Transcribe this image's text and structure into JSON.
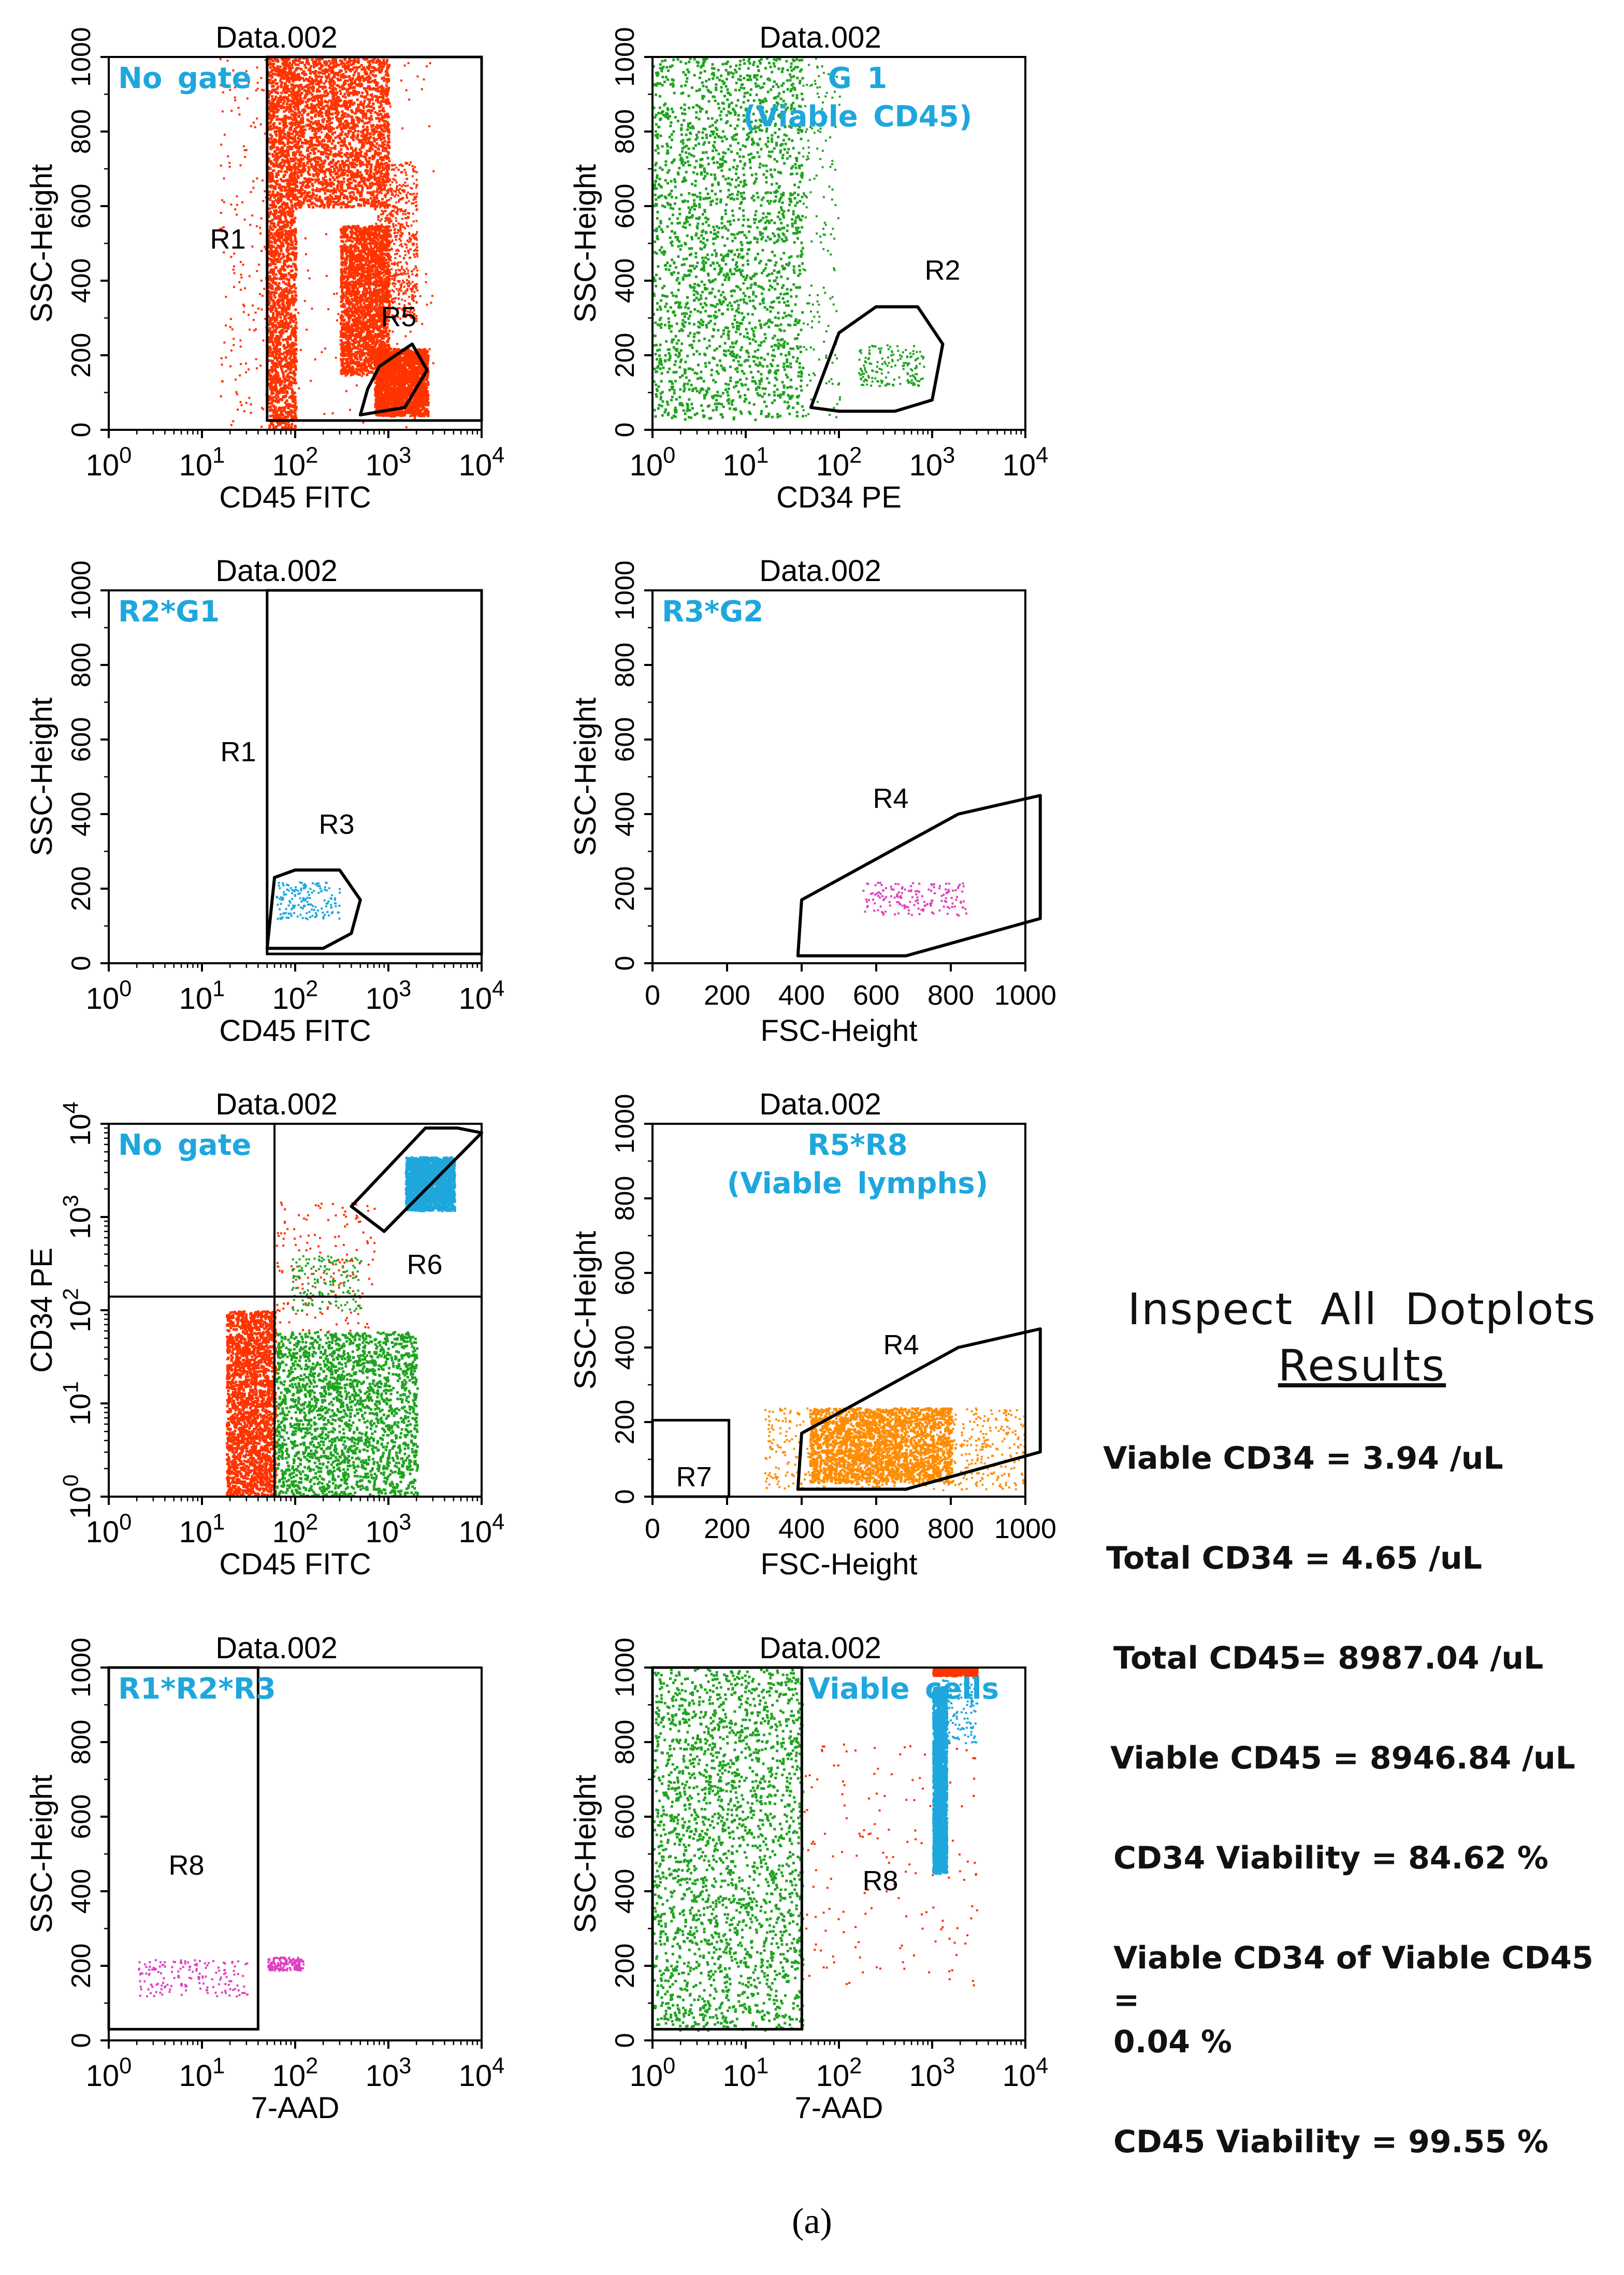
{
  "chart_data": [
    {
      "type": "scatter",
      "title": "Data.002",
      "gate_label": [
        "No gate"
      ],
      "xlabel": "CD45 FITC",
      "ylabel": "SSC-Height",
      "xscale": "log",
      "xlim": [
        1,
        10000
      ],
      "yscale": "linear",
      "ylim": [
        0,
        1000
      ],
      "x_ticks": [
        1,
        10,
        100,
        1000,
        10000
      ],
      "y_ticks": [
        0,
        200,
        400,
        600,
        800,
        1000
      ],
      "regions": [
        {
          "name": "R1",
          "shape": "rectangle",
          "x": [
            50,
            10000
          ],
          "y": [
            25,
            1000
          ]
        },
        {
          "name": "R5",
          "shape": "polygon",
          "points": [
            [
              500,
              40
            ],
            [
              1500,
              60
            ],
            [
              2600,
              160
            ],
            [
              1800,
              230
            ],
            [
              800,
              170
            ],
            [
              600,
              110
            ]
          ]
        }
      ],
      "populations": [
        {
          "color": "#ff3300",
          "x_range": [
            50,
            100
          ],
          "y_range": [
            0,
            1000
          ],
          "density": "high"
        },
        {
          "color": "#ff3300",
          "x_range": [
            15,
            50
          ],
          "y_range": [
            0,
            1000
          ],
          "density": "low"
        },
        {
          "color": "#ff3300",
          "x_range": [
            100,
            1000
          ],
          "y_range": [
            600,
            1000
          ],
          "density": "high"
        },
        {
          "color": "#ff3300",
          "x_range": [
            300,
            1000
          ],
          "y_range": [
            150,
            550
          ],
          "density": "high"
        },
        {
          "color": "#ff3300",
          "x_range": [
            700,
            2600
          ],
          "y_range": [
            40,
            220
          ],
          "density": "high"
        },
        {
          "color": "#ff3300",
          "x_range": [
            700,
            2000
          ],
          "y_range": [
            300,
            720
          ],
          "density": "medium"
        },
        {
          "color": "#ff3300",
          "x_range": [
            100,
            3000
          ],
          "y_range": [
            0,
            1000
          ],
          "density": "low"
        }
      ]
    },
    {
      "type": "scatter",
      "title": "Data.002",
      "gate_label": [
        "G 1",
        "(Viable  CD45)"
      ],
      "xlabel": "CD34 PE",
      "ylabel": "SSC-Height",
      "xscale": "log",
      "xlim": [
        1,
        10000
      ],
      "yscale": "linear",
      "ylim": [
        0,
        1000
      ],
      "x_ticks": [
        1,
        10,
        100,
        1000,
        10000
      ],
      "y_ticks": [
        0,
        200,
        400,
        600,
        800,
        1000
      ],
      "regions": [
        {
          "name": "R2",
          "shape": "polygon",
          "points": [
            [
              50,
              60
            ],
            [
              100,
              260
            ],
            [
              250,
              330
            ],
            [
              700,
              330
            ],
            [
              1300,
              230
            ],
            [
              1000,
              80
            ],
            [
              400,
              50
            ],
            [
              100,
              50
            ]
          ]
        }
      ],
      "populations": [
        {
          "color": "#1fa31f",
          "x_range": [
            1,
            40
          ],
          "y_range": [
            30,
            1000
          ],
          "density": "high"
        },
        {
          "color": "#1fa31f",
          "x_range": [
            40,
            100
          ],
          "y_range": [
            30,
            1000
          ],
          "density": "low"
        },
        {
          "color": "#1fa31f",
          "x_range": [
            160,
            800
          ],
          "y_range": [
            120,
            230
          ],
          "density": "low"
        }
      ]
    },
    {
      "type": "scatter",
      "title": "Data.002",
      "gate_label": [
        "R2*G1"
      ],
      "xlabel": "CD45 FITC",
      "ylabel": "SSC-Height",
      "xscale": "log",
      "xlim": [
        1,
        10000
      ],
      "yscale": "linear",
      "ylim": [
        0,
        1000
      ],
      "x_ticks": [
        1,
        10,
        100,
        1000,
        10000
      ],
      "y_ticks": [
        0,
        200,
        400,
        600,
        800,
        1000
      ],
      "regions": [
        {
          "name": "R1",
          "shape": "rectangle",
          "x": [
            50,
            10000
          ],
          "y": [
            25,
            1000
          ]
        },
        {
          "name": "R3",
          "shape": "polygon",
          "points": [
            [
              50,
              40
            ],
            [
              60,
              230
            ],
            [
              100,
              250
            ],
            [
              300,
              250
            ],
            [
              500,
              170
            ],
            [
              400,
              80
            ],
            [
              200,
              40
            ]
          ]
        }
      ],
      "populations": [
        {
          "color": "#1ea7dd",
          "x_range": [
            60,
            300
          ],
          "y_range": [
            120,
            220
          ],
          "density": "low"
        }
      ]
    },
    {
      "type": "scatter",
      "title": "Data.002",
      "gate_label": [
        "R3*G2"
      ],
      "xlabel": "FSC-Height",
      "ylabel": "SSC-Height",
      "xscale": "linear",
      "xlim": [
        0,
        1000
      ],
      "yscale": "linear",
      "ylim": [
        0,
        1000
      ],
      "x_ticks": [
        0,
        200,
        400,
        600,
        800,
        1000
      ],
      "y_ticks": [
        0,
        200,
        400,
        600,
        800,
        1000
      ],
      "regions": [
        {
          "name": "R4",
          "shape": "polygon",
          "points": [
            [
              390,
              20
            ],
            [
              400,
              170
            ],
            [
              820,
              400
            ],
            [
              1040,
              450
            ],
            [
              1040,
              120
            ],
            [
              680,
              20
            ]
          ]
        }
      ],
      "populations": [
        {
          "color": "#e040c0",
          "x_range": [
            560,
            840
          ],
          "y_range": [
            130,
            220
          ],
          "density": "low"
        }
      ]
    },
    {
      "type": "scatter",
      "title": "Data.002",
      "gate_label": [
        "No gate"
      ],
      "xlabel": "CD45 FITC",
      "ylabel": "CD34 PE",
      "xscale": "log",
      "xlim": [
        1,
        10000
      ],
      "yscale": "log",
      "ylim": [
        1,
        10000
      ],
      "x_ticks": [
        1,
        10,
        100,
        1000,
        10000
      ],
      "y_ticks": [
        1,
        10,
        100,
        1000,
        10000
      ],
      "regions": [
        {
          "name": "R6",
          "shape": "polygon",
          "points": [
            [
              400,
              1300
            ],
            [
              2500,
              9000
            ],
            [
              5500,
              9000
            ],
            [
              10000,
              8000
            ],
            [
              900,
              700
            ]
          ]
        },
        {
          "name": "quadrant",
          "shape": "quadrant",
          "x": 60,
          "y": 140
        }
      ],
      "populations": [
        {
          "color": "#1fa31f",
          "x_range": [
            60,
            2000
          ],
          "y_range": [
            1,
            60
          ],
          "density": "high"
        },
        {
          "color": "#ff3300",
          "x_range": [
            18,
            60
          ],
          "y_range": [
            1,
            100
          ],
          "density": "high"
        },
        {
          "color": "#ff3300",
          "x_range": [
            60,
            700
          ],
          "y_range": [
            60,
            1500
          ],
          "density": "low"
        },
        {
          "color": "#1fa31f",
          "x_range": [
            90,
            500
          ],
          "y_range": [
            100,
            400
          ],
          "density": "low"
        },
        {
          "color": "#1ea7dd",
          "x_range": [
            1500,
            5000
          ],
          "y_range": [
            1200,
            4500
          ],
          "density": "high"
        }
      ]
    },
    {
      "type": "scatter",
      "title": "Data.002",
      "gate_label": [
        "R5*R8",
        "(Viable  lymphs)"
      ],
      "xlabel": "FSC-Height",
      "ylabel": "SSC-Height",
      "xscale": "linear",
      "xlim": [
        0,
        1000
      ],
      "yscale": "linear",
      "ylim": [
        0,
        1000
      ],
      "x_ticks": [
        0,
        200,
        400,
        600,
        800,
        1000
      ],
      "y_ticks": [
        0,
        200,
        400,
        600,
        800,
        1000
      ],
      "regions": [
        {
          "name": "R4",
          "shape": "polygon",
          "points": [
            [
              390,
              20
            ],
            [
              400,
              170
            ],
            [
              820,
              400
            ],
            [
              1040,
              450
            ],
            [
              1040,
              120
            ],
            [
              680,
              20
            ]
          ]
        },
        {
          "name": "R7",
          "shape": "rectangle",
          "x": [
            0,
            205
          ],
          "y": [
            0,
            205
          ]
        }
      ],
      "populations": [
        {
          "color": "#ff8c00",
          "x_range": [
            420,
            800
          ],
          "y_range": [
            40,
            240
          ],
          "density": "high"
        },
        {
          "color": "#ff8c00",
          "x_range": [
            300,
            1000
          ],
          "y_range": [
            20,
            240
          ],
          "density": "medium"
        }
      ]
    },
    {
      "type": "scatter",
      "title": "Data.002",
      "gate_label": [
        "R1*R2*R3"
      ],
      "xlabel": "7-AAD",
      "ylabel": "SSC-Height",
      "xscale": "log",
      "xlim": [
        1,
        10000
      ],
      "yscale": "linear",
      "ylim": [
        0,
        1000
      ],
      "x_ticks": [
        1,
        10,
        100,
        1000,
        10000
      ],
      "y_ticks": [
        0,
        200,
        400,
        600,
        800,
        1000
      ],
      "regions": [
        {
          "name": "R8",
          "shape": "rectangle",
          "x": [
            1,
            40
          ],
          "y": [
            30,
            1000
          ]
        }
      ],
      "populations": [
        {
          "color": "#e040c0",
          "x_range": [
            2,
            30
          ],
          "y_range": [
            120,
            220
          ],
          "density": "low"
        },
        {
          "color": "#e040c0",
          "x_range": [
            50,
            120
          ],
          "y_range": [
            190,
            225
          ],
          "density": "low"
        }
      ]
    },
    {
      "type": "scatter",
      "title": "Data.002",
      "gate_label": [
        "Viable  cells"
      ],
      "xlabel": "7-AAD",
      "ylabel": "SSC-Height",
      "xscale": "log",
      "xlim": [
        1,
        10000
      ],
      "yscale": "linear",
      "ylim": [
        0,
        1000
      ],
      "x_ticks": [
        1,
        10,
        100,
        1000,
        10000
      ],
      "y_ticks": [
        0,
        200,
        400,
        600,
        800,
        1000
      ],
      "regions": [
        {
          "name": "R8",
          "shape": "rectangle",
          "x": [
            1,
            40
          ],
          "y": [
            30,
            1000
          ]
        }
      ],
      "populations": [
        {
          "color": "#1fa31f",
          "x_range": [
            1,
            40
          ],
          "y_range": [
            30,
            1000
          ],
          "density": "high"
        },
        {
          "color": "#ff3300",
          "x_range": [
            40,
            3000
          ],
          "y_range": [
            150,
            800
          ],
          "density": "low"
        },
        {
          "color": "#1ea7dd",
          "x_range": [
            1000,
            1400
          ],
          "y_range": [
            450,
            950
          ],
          "density": "high"
        },
        {
          "color": "#1ea7dd",
          "x_range": [
            1200,
            3000
          ],
          "y_range": [
            800,
            1000
          ],
          "density": "low"
        },
        {
          "color": "#ff3300",
          "x_range": [
            1000,
            3000
          ],
          "y_range": [
            980,
            1000
          ],
          "density": "medium"
        }
      ]
    }
  ],
  "results": {
    "heading": "Inspect All Dotplots",
    "subheading": "Results",
    "lines": [
      "Viable CD34 =  3.94 /uL",
      "Total CD34 =  4.65 /uL",
      "Total CD45= 8987.04  /uL",
      "Viable CD45 =  8946.84 /uL",
      "CD34 Viability =  84.62 %",
      "Viable CD34 of Viable CD45 =",
      "0.04 %",
      "CD45 Viability =  99.55 %"
    ]
  },
  "caption": "(a)",
  "colors": {
    "gate_label": "#1ea7dd",
    "frame": "#000000"
  }
}
